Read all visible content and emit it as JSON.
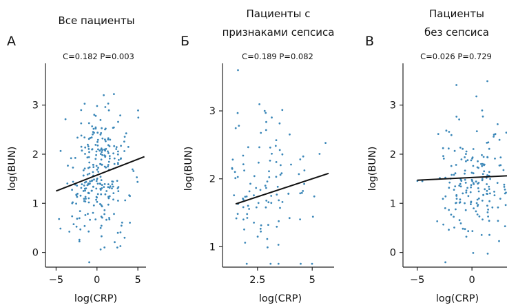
{
  "colors": {
    "points": "#3b87b8",
    "regression": "#111111",
    "axes": "#222222"
  },
  "chart_data": [
    {
      "type": "scatter",
      "panel_letter": "A",
      "title": "Все пациенты",
      "stat_text": "C=0.182 P=0.003",
      "xlabel": "log(CRP)",
      "ylabel": "log(BUN)",
      "xlim": [
        -6.3,
        6.0
      ],
      "ylim": [
        -0.3,
        3.85
      ],
      "xticks": [
        -5,
        0,
        5
      ],
      "yticks": [
        0,
        1,
        2,
        3
      ],
      "regression": {
        "x": [
          -5.0,
          5.8
        ],
        "y": [
          1.25,
          1.95
        ]
      },
      "n_points": 280,
      "x_center": 0.4,
      "x_spread": 1.9,
      "y_center": 1.6,
      "y_spread": 0.65,
      "x_range": [
        -5.0,
        5.0
      ],
      "y_range": [
        -0.2,
        3.7
      ],
      "seed": 11
    },
    {
      "type": "scatter",
      "panel_letter": "Б",
      "title": "Пациенты с признаками сепсиса",
      "stat_text": "C=0.189 P=0.082",
      "xlabel": "log(CRP)",
      "ylabel": "log(BUN)",
      "xlim": [
        0.9,
        6.0
      ],
      "ylim": [
        0.7,
        3.7
      ],
      "xticks": [
        2.5,
        5.0
      ],
      "yticks": [
        1,
        2,
        3
      ],
      "regression": {
        "x": [
          1.5,
          5.75
        ],
        "y": [
          1.63,
          2.08
        ]
      },
      "n_points": 110,
      "x_center": 2.9,
      "x_spread": 1.0,
      "y_center": 1.85,
      "y_spread": 0.6,
      "x_range": [
        1.5,
        5.5
      ],
      "y_range": [
        0.75,
        3.6
      ],
      "seed": 29
    },
    {
      "type": "scatter",
      "panel_letter": "В",
      "title": "Пациенты без сепсиса",
      "stat_text": "C=0.026 P=0.729",
      "xlabel": "log(CRP)",
      "ylabel": "log(BUN)",
      "xlim": [
        -6.3,
        3.2
      ],
      "ylim": [
        -0.3,
        3.85
      ],
      "xticks": [
        -5,
        0
      ],
      "yticks": [
        0,
        1,
        2,
        3
      ],
      "regression": {
        "x": [
          -5.0,
          3.2
        ],
        "y": [
          1.47,
          1.56
        ]
      },
      "n_points": 190,
      "x_center": 0.0,
      "x_spread": 1.6,
      "y_center": 1.5,
      "y_spread": 0.65,
      "x_range": [
        -5.0,
        3.0
      ],
      "y_range": [
        -0.2,
        3.7
      ],
      "seed": 47
    }
  ]
}
